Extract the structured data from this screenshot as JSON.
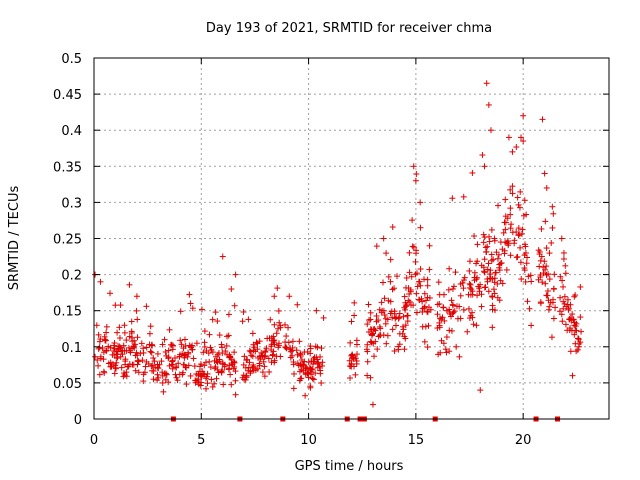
{
  "chart_data": {
    "type": "scatter",
    "title": "Day 193 of 2021, SRMTID for receiver chma",
    "xlabel": "GPS time / hours",
    "ylabel": "SRMTID / TECUs",
    "xlim": [
      0,
      24
    ],
    "ylim": [
      0,
      0.5
    ],
    "xticks": [
      0,
      5,
      10,
      15,
      20
    ],
    "yticks": [
      0,
      0.05,
      0.1,
      0.15,
      0.2,
      0.25,
      0.3,
      0.35,
      0.4,
      0.45,
      0.5
    ],
    "xtick_labels": [
      "0",
      "5",
      "10",
      "15",
      "20"
    ],
    "ytick_labels": [
      "0",
      "0.05",
      "0.1",
      "0.15",
      "0.2",
      "0.25",
      "0.3",
      "0.35",
      "0.4",
      "0.45",
      "0.5"
    ],
    "grid": true,
    "marker": "plus",
    "color": "#e00000",
    "data_gaps_at_zero": [
      3.7,
      6.8,
      8.8,
      11.8,
      12.4,
      12.6,
      15.9,
      20.6,
      21.6
    ],
    "series": [
      {
        "name": "SRMTID",
        "segments": [
          {
            "x": [
              0.0,
              0.2,
              0.4,
              0.6,
              0.8,
              1.0,
              1.2,
              1.4,
              1.6,
              1.8,
              2.0,
              2.2,
              2.4,
              2.6,
              2.8,
              3.0,
              3.2,
              3.4,
              3.6,
              3.8,
              4.0,
              4.2,
              4.4,
              4.6,
              4.8,
              5.0,
              5.2,
              5.4,
              5.6,
              5.8,
              6.0,
              6.2,
              6.4,
              6.6
            ],
            "y": [
              0.095,
              0.085,
              0.08,
              0.1,
              0.09,
              0.085,
              0.095,
              0.08,
              0.09,
              0.1,
              0.085,
              0.09,
              0.08,
              0.1,
              0.085,
              0.075,
              0.08,
              0.07,
              0.075,
              0.07,
              0.08,
              0.085,
              0.075,
              0.08,
              0.07,
              0.065,
              0.07,
              0.075,
              0.07,
              0.075,
              0.085,
              0.09,
              0.075,
              0.07
            ],
            "spread": 0.045,
            "peaks": [
              [
                0.05,
                0.2
              ],
              [
                0.3,
                0.19
              ],
              [
                2.0,
                0.17
              ],
              [
                4.5,
                0.16
              ],
              [
                6.0,
                0.225
              ],
              [
                6.4,
                0.18
              ]
            ]
          },
          {
            "x": [
              6.9,
              7.1,
              7.3,
              7.5,
              7.7,
              7.9,
              8.1,
              8.3,
              8.5,
              8.7
            ],
            "y": [
              0.07,
              0.075,
              0.07,
              0.08,
              0.085,
              0.09,
              0.095,
              0.1,
              0.105,
              0.12
            ],
            "spread": 0.045,
            "peaks": [
              [
                6.6,
                0.2
              ],
              [
                8.4,
                0.17
              ]
            ]
          },
          {
            "x": [
              8.9,
              9.1,
              9.3,
              9.5,
              9.7,
              9.9,
              10.1,
              10.3,
              10.5,
              10.7
            ],
            "y": [
              0.1,
              0.09,
              0.08,
              0.075,
              0.07,
              0.065,
              0.07,
              0.075,
              0.08,
              0.085
            ],
            "spread": 0.04,
            "peaks": [
              [
                9.1,
                0.17
              ],
              [
                10.7,
                0.14
              ]
            ]
          },
          {
            "x": [
              11.9,
              12.1,
              12.3
            ],
            "y": [
              0.08,
              0.085,
              0.09
            ],
            "spread": 0.04,
            "peaks": [
              [
                12.0,
                0.135
              ]
            ]
          },
          {
            "x": [
              12.7,
              12.9,
              13.1,
              13.3,
              13.5,
              13.7,
              13.9,
              14.1,
              14.3,
              14.5,
              14.7,
              14.9,
              15.1,
              15.3,
              15.5,
              15.7
            ],
            "y": [
              0.1,
              0.11,
              0.12,
              0.13,
              0.14,
              0.15,
              0.16,
              0.14,
              0.13,
              0.15,
              0.17,
              0.2,
              0.19,
              0.16,
              0.17,
              0.15
            ],
            "spread": 0.07,
            "peaks": [
              [
                14.9,
                0.35
              ],
              [
                15.0,
                0.33
              ],
              [
                15.2,
                0.3
              ],
              [
                13.5,
                0.25
              ],
              [
                13.0,
                0.02
              ]
            ]
          },
          {
            "x": [
              16.0,
              16.2,
              16.4,
              16.6,
              16.8,
              17.0,
              17.2,
              17.4,
              17.6,
              17.8,
              18.0,
              18.2,
              18.4,
              18.6,
              18.8,
              19.0,
              19.2,
              19.4,
              19.6,
              19.8,
              20.0,
              20.2,
              20.4
            ],
            "y": [
              0.14,
              0.13,
              0.15,
              0.14,
              0.16,
              0.15,
              0.17,
              0.16,
              0.18,
              0.19,
              0.2,
              0.21,
              0.22,
              0.18,
              0.2,
              0.22,
              0.26,
              0.28,
              0.25,
              0.24,
              0.23,
              0.21,
              0.18
            ],
            "spread": 0.075,
            "peaks": [
              [
                18.3,
                0.465
              ],
              [
                18.4,
                0.435
              ],
              [
                18.5,
                0.4
              ],
              [
                18.2,
                0.35
              ],
              [
                20.0,
                0.42
              ],
              [
                19.5,
                0.37
              ],
              [
                19.9,
                0.39
              ],
              [
                18.0,
                0.04
              ]
            ]
          },
          {
            "x": [
              20.7,
              20.9,
              21.1,
              21.3,
              21.5
            ],
            "y": [
              0.22,
              0.21,
              0.19,
              0.17,
              0.16
            ],
            "spread": 0.07,
            "peaks": [
              [
                20.9,
                0.415
              ],
              [
                21.0,
                0.34
              ],
              [
                21.1,
                0.32
              ]
            ]
          },
          {
            "x": [
              21.7,
              21.9,
              22.1,
              22.3,
              22.5,
              22.7
            ],
            "y": [
              0.17,
              0.15,
              0.14,
              0.13,
              0.12,
              0.11
            ],
            "spread": 0.05,
            "peaks": [
              [
                21.8,
                0.25
              ],
              [
                21.9,
                0.23
              ],
              [
                22.3,
                0.06
              ]
            ]
          }
        ]
      }
    ]
  }
}
